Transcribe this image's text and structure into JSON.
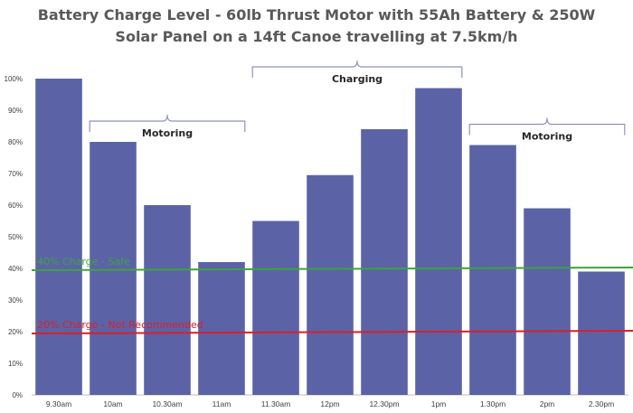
{
  "chart_data": {
    "type": "bar",
    "title_lines": [
      "Battery Charge Level - 60lb Thrust Motor with 55Ah Battery & 250W",
      "Solar Panel on a 14ft Canoe travelling at 7.5km/h"
    ],
    "categories": [
      "9.30am",
      "10am",
      "10.30am",
      "11am",
      "11.30am",
      "12pm",
      "12.30pm",
      "1pm",
      "1.30pm",
      "2pm",
      "2.30pm"
    ],
    "values": [
      100,
      80,
      60,
      42,
      55,
      69.5,
      84,
      97,
      79,
      59,
      39
    ],
    "ylim": [
      0,
      100
    ],
    "yticks": [
      "0%",
      "10%",
      "20%",
      "30%",
      "40%",
      "50%",
      "60%",
      "70%",
      "80%",
      "90%",
      "100%"
    ],
    "xlabel": "",
    "ylabel": "",
    "grid": false,
    "bar_color": "#5b63a6",
    "reference_lines": [
      {
        "label": "40% Charge - Safe",
        "value": 40,
        "color": "#3ea33e"
      },
      {
        "label": "20% Charge - Not Recommended",
        "value": 20,
        "color": "#d9202a"
      }
    ],
    "annotations": [
      {
        "label": "Motoring",
        "from_category": "10am",
        "to_category": "11am"
      },
      {
        "label": "Charging",
        "from_category": "11.30am",
        "to_category": "1pm"
      },
      {
        "label": "Motoring",
        "from_category": "1.30pm",
        "to_category": "2.30pm"
      }
    ]
  }
}
